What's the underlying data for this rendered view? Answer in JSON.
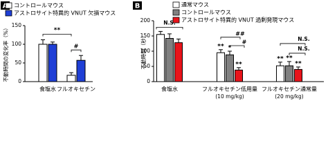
{
  "chart_data": [
    {
      "type": "bar",
      "panel": "A",
      "ylabel": "不動時間の変化率（%）",
      "categories": [
        "食塩水",
        "フルオキセチン"
      ],
      "series": [
        {
          "name": "コントロールマウス",
          "color": "#ffffff",
          "values": [
            100,
            17
          ],
          "errors": [
            12,
            7
          ]
        },
        {
          "name": "アストロサイト特異的 VNUT 欠損マウス",
          "color": "#1f3fd6",
          "values": [
            100,
            57
          ],
          "errors": [
            6,
            13
          ]
        }
      ],
      "ylim": [
        0,
        150
      ],
      "yticks": [
        0,
        50,
        100,
        150
      ],
      "annotations": [
        "**",
        "#"
      ]
    },
    {
      "type": "bar",
      "panel": "B",
      "ylabel": "不動時間（秒）",
      "categories": [
        "食塩水",
        "フルオキセチン低用量",
        "フルオキセチン通常量"
      ],
      "category_notes": [
        null,
        "(10 mg/kg)",
        "(20 mg/kg)"
      ],
      "series": [
        {
          "name": "通常マウス",
          "color": "#ffffff",
          "values": [
            155,
            95,
            52
          ],
          "errors": [
            10,
            10,
            12
          ]
        },
        {
          "name": "コントロールマウス",
          "color": "#808080",
          "values": [
            142,
            88,
            52
          ],
          "errors": [
            15,
            12,
            14
          ]
        },
        {
          "name": "アストロサイト特異的 VNUT 過剰発現マウス",
          "color": "#e8141b",
          "values": [
            128,
            38,
            40
          ],
          "errors": [
            12,
            8,
            8
          ]
        }
      ],
      "ylim": [
        0,
        200
      ],
      "yticks": [
        0,
        50,
        100,
        150,
        200
      ],
      "annotations": [
        "N.S.",
        "**",
        "*",
        "**",
        "##",
        "#",
        "**",
        "**",
        "**",
        "N.S.",
        "N.S."
      ]
    }
  ]
}
